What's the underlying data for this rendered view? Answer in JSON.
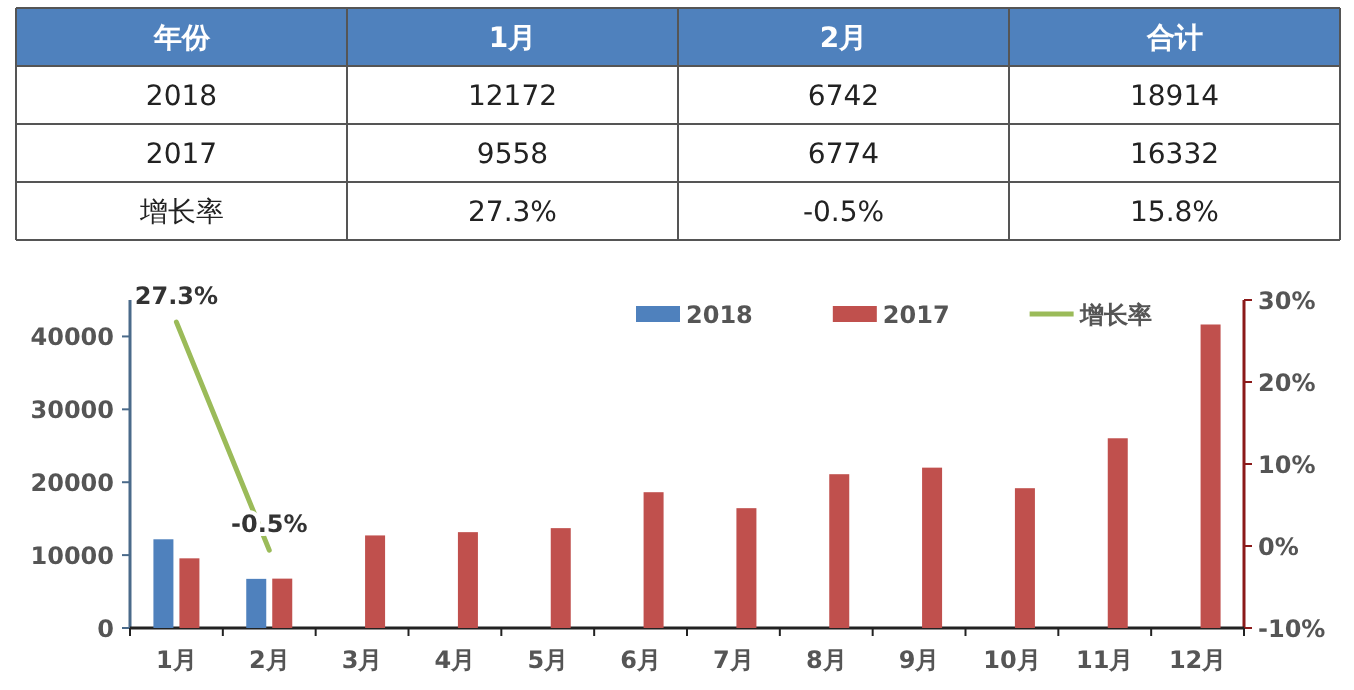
{
  "chart_data": [
    {
      "type": "other",
      "categories": [
        "年份",
        "1月",
        "2月",
        "合计"
      ],
      "y_categories": [
        "2018",
        "2017",
        "增长率"
      ],
      "color": "#4f81bd",
      "cell_labels": [
        [
          "12172",
          "6742",
          "18914"
        ],
        [
          "9558",
          "6774",
          "16332"
        ],
        [
          "27.3%",
          "-0.5%",
          "15.8%"
        ]
      ]
    },
    {
      "type": "bar",
      "categories": [
        "1月",
        "2月",
        "3月",
        "4月",
        "5月",
        "6月",
        "7月",
        "8月",
        "9月",
        "10月",
        "11月",
        "12月"
      ],
      "series": [
        {
          "name": "2018",
          "color": "#4f81bd",
          "values": [
            12172,
            6742,
            null,
            null,
            null,
            null,
            null,
            null,
            null,
            null,
            null,
            null
          ]
        },
        {
          "name": "2017",
          "color": "#c0504d",
          "values": [
            9558,
            6774,
            12700,
            13150,
            13700,
            18630,
            16440,
            21100,
            22000,
            19180,
            26030,
            41640
          ]
        },
        {
          "name": "增长率",
          "type": "line",
          "axis": "y2",
          "color": "#9bbb59",
          "values": [
            27.3,
            -0.5,
            null,
            null,
            null,
            null,
            null,
            null,
            null,
            null,
            null,
            null
          ],
          "value_labels": [
            "27.3%",
            "-0.5%",
            null,
            null,
            null,
            null,
            null,
            null,
            null,
            null,
            null,
            null
          ]
        }
      ],
      "ylim": [
        0,
        45000
      ],
      "yticks": [
        0,
        10000,
        20000,
        30000,
        40000
      ],
      "y2lim": [
        -10,
        30
      ],
      "y2ticks": [
        {
          "value": -10,
          "label": "-10%"
        },
        {
          "value": 0,
          "label": "0%"
        },
        {
          "value": 10,
          "label": "10%"
        },
        {
          "value": 20,
          "label": "20%"
        },
        {
          "value": 30,
          "label": "30%"
        }
      ],
      "legend": "top",
      "grid": false
    }
  ]
}
